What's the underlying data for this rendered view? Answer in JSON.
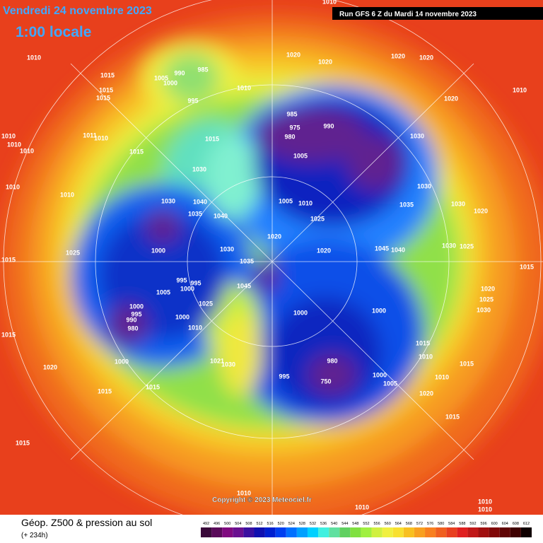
{
  "header": {
    "date": "Vendredi 24 novembre 2023",
    "time": "1:00 locale",
    "run": "Run GFS 6 Z du Mardi 14 novembre 2023"
  },
  "footer": {
    "title": "Géop. Z500 & pression au sol",
    "lead": "(+ 234h)",
    "copyright": "Copyright © 2023 Meteociel.fr"
  },
  "colorbar": {
    "ticks": [
      492,
      496,
      500,
      504,
      508,
      512,
      516,
      520,
      524,
      528,
      532,
      536,
      540,
      544,
      548,
      552,
      556,
      560,
      564,
      568,
      572,
      576,
      580,
      584,
      588,
      592,
      596,
      600,
      604,
      608,
      612
    ],
    "colors": [
      "#3a0a3a",
      "#5a0a5a",
      "#800a80",
      "#6a1090",
      "#3a10a0",
      "#1010b0",
      "#0020d0",
      "#0040f0",
      "#0070ff",
      "#00a0ff",
      "#00d0ff",
      "#40f0e0",
      "#60e0a0",
      "#60d060",
      "#80e040",
      "#a0f040",
      "#d0f040",
      "#f0f040",
      "#f8e030",
      "#f8c020",
      "#f8a020",
      "#f88020",
      "#f06020",
      "#e84020",
      "#e02020",
      "#c01818",
      "#a01010",
      "#800808",
      "#600404",
      "#400202",
      "#100000"
    ]
  },
  "isobar_labels": [
    "1010",
    "1010",
    "1015",
    "1015",
    "1015",
    "1005",
    "990",
    "985",
    "1000",
    "995",
    "1020",
    "1020",
    "1020",
    "1020",
    "1010",
    "985",
    "975",
    "990",
    "980",
    "1005",
    "1030",
    "1020",
    "1010",
    "1010",
    "1010",
    "1010",
    "1011",
    "1010",
    "1015",
    "1015",
    "1030",
    "1030",
    "1035",
    "1010",
    "1010",
    "1030",
    "1040",
    "1035",
    "1040",
    "1005",
    "1010",
    "1025",
    "1030",
    "1020",
    "1025",
    "1000",
    "1030",
    "1020",
    "1020",
    "1045",
    "1040",
    "1030",
    "1025",
    "1015",
    "995",
    "995",
    "1035",
    "1045",
    "1000",
    "1005",
    "1015",
    "1020",
    "1025",
    "1030",
    "1000",
    "995",
    "990",
    "1000",
    "1025",
    "1000",
    "1000",
    "980",
    "1010",
    "1015",
    "1015",
    "1020",
    "1021",
    "1030",
    "1000",
    "980",
    "995",
    "750",
    "1000",
    "1005",
    "1010",
    "1015",
    "1010",
    "1015",
    "1020",
    "1015",
    "1015",
    "1015",
    "1010",
    "1010",
    "1010",
    "1010"
  ]
}
